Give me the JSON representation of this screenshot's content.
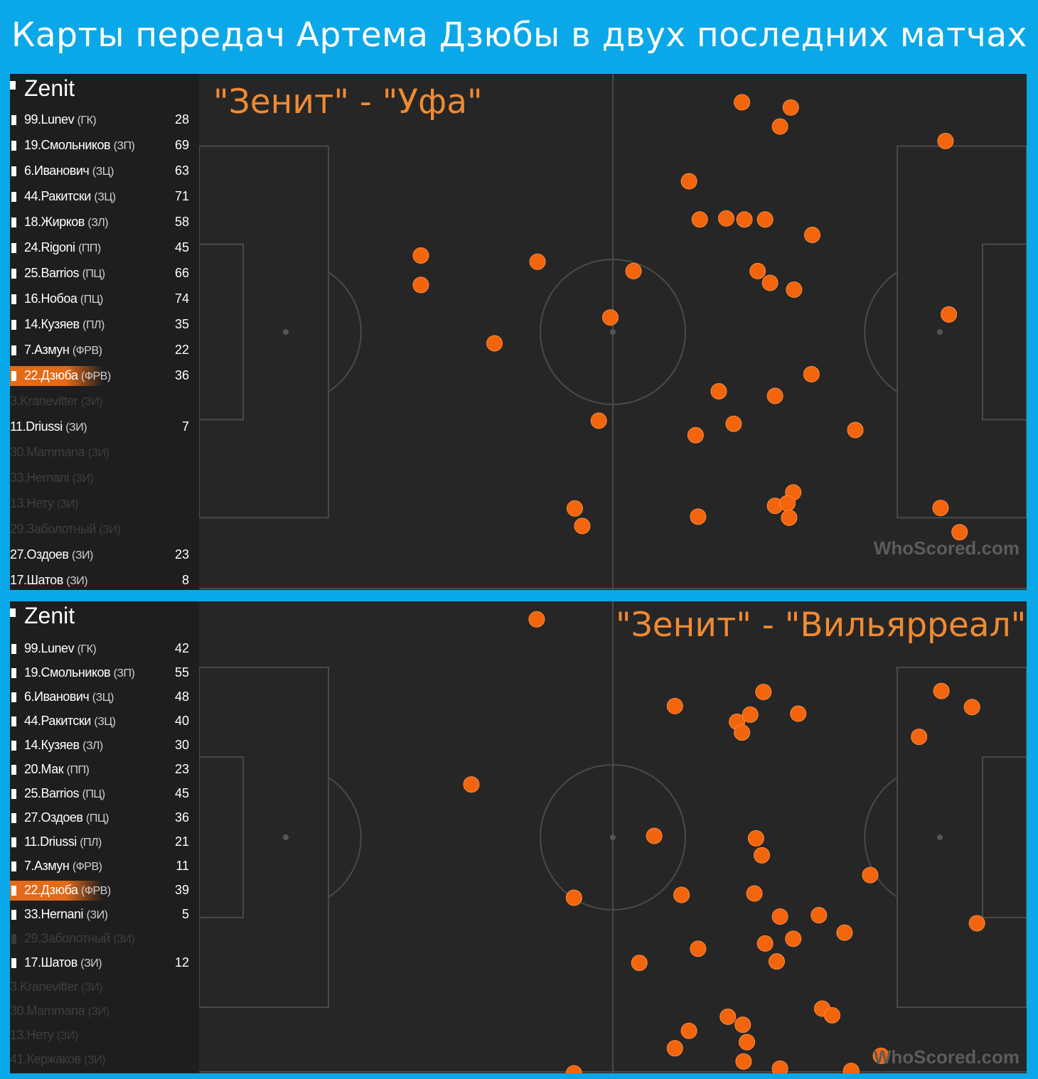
{
  "title": "Карты передач Артема Дзюбы в двух последних матчах",
  "watermark": "WhoScored.com",
  "colors": {
    "background": "#0aa8e8",
    "pitch": "#262626",
    "dot": "#f2650c",
    "highlight": "#e36a18",
    "label": "#f08a33"
  },
  "matches": [
    {
      "label": "\"Зенит\" - \"Уфа\"",
      "team": "Zenit",
      "players": [
        {
          "num_name": "99.Lunev",
          "pos": "(ГК)",
          "count": "28"
        },
        {
          "num_name": "19.Смольников",
          "pos": "(ЗП)",
          "count": "69"
        },
        {
          "num_name": "6.Иванович",
          "pos": "(ЗЦ)",
          "count": "63"
        },
        {
          "num_name": "44.Ракитски",
          "pos": "(ЗЦ)",
          "count": "71"
        },
        {
          "num_name": "18.Жирков",
          "pos": "(ЗЛ)",
          "count": "58"
        },
        {
          "num_name": "24.Rigoni",
          "pos": "(ПП)",
          "count": "45"
        },
        {
          "num_name": "25.Barrios",
          "pos": "(ПЦ)",
          "count": "66"
        },
        {
          "num_name": "16.Нобоа",
          "pos": "(ПЦ)",
          "count": "74"
        },
        {
          "num_name": "14.Кузяев",
          "pos": "(ПЛ)",
          "count": "35"
        },
        {
          "num_name": "7.Азмун",
          "pos": "(ФРВ)",
          "count": "22"
        },
        {
          "num_name": "22.Дзюба",
          "pos": "(ФРВ)",
          "count": "36",
          "selected": true
        }
      ],
      "subs": [
        {
          "num_name": "3.Kranevitter",
          "pos": "(ЗИ)",
          "count": "",
          "played": false
        },
        {
          "num_name": "11.Driussi",
          "pos": "(ЗИ)",
          "count": "7",
          "played": true
        },
        {
          "num_name": "30.Mammana",
          "pos": "(ЗИ)",
          "count": "",
          "played": false
        },
        {
          "num_name": "33.Hernani",
          "pos": "(ЗИ)",
          "count": "",
          "played": false
        },
        {
          "num_name": "13.Нету",
          "pos": "(ЗИ)",
          "count": "",
          "played": false
        },
        {
          "num_name": "29.Заболотный",
          "pos": "(ЗИ)",
          "count": "",
          "played": false
        },
        {
          "num_name": "27.Оздоев",
          "pos": "(ЗИ)",
          "count": "23",
          "played": true
        },
        {
          "num_name": "17.Шатов",
          "pos": "(ЗИ)",
          "count": "8",
          "played": true
        }
      ],
      "passes": [
        [
          0.656,
          0.055
        ],
        [
          0.715,
          0.065
        ],
        [
          0.702,
          0.102
        ],
        [
          0.902,
          0.13
        ],
        [
          0.592,
          0.208
        ],
        [
          0.605,
          0.282
        ],
        [
          0.637,
          0.28
        ],
        [
          0.659,
          0.282
        ],
        [
          0.684,
          0.282
        ],
        [
          0.741,
          0.312
        ],
        [
          0.268,
          0.352
        ],
        [
          0.268,
          0.409
        ],
        [
          0.409,
          0.364
        ],
        [
          0.525,
          0.382
        ],
        [
          0.675,
          0.382
        ],
        [
          0.69,
          0.405
        ],
        [
          0.719,
          0.418
        ],
        [
          0.497,
          0.472
        ],
        [
          0.357,
          0.522
        ],
        [
          0.906,
          0.466
        ],
        [
          0.74,
          0.582
        ],
        [
          0.628,
          0.615
        ],
        [
          0.696,
          0.624
        ],
        [
          0.483,
          0.672
        ],
        [
          0.6,
          0.7
        ],
        [
          0.646,
          0.678
        ],
        [
          0.793,
          0.69
        ],
        [
          0.454,
          0.842
        ],
        [
          0.463,
          0.876
        ],
        [
          0.603,
          0.858
        ],
        [
          0.696,
          0.837
        ],
        [
          0.718,
          0.811
        ],
        [
          0.711,
          0.832
        ],
        [
          0.713,
          0.86
        ],
        [
          0.896,
          0.841
        ],
        [
          0.919,
          0.888
        ]
      ]
    },
    {
      "label": "\"Зенит\" - \"Вильярреал\"",
      "team": "Zenit",
      "players": [
        {
          "num_name": "99.Lunev",
          "pos": "(ГК)",
          "count": "42"
        },
        {
          "num_name": "19.Смольников",
          "pos": "(ЗП)",
          "count": "55"
        },
        {
          "num_name": "6.Иванович",
          "pos": "(ЗЦ)",
          "count": "48"
        },
        {
          "num_name": "44.Ракитски",
          "pos": "(ЗЦ)",
          "count": "40"
        },
        {
          "num_name": "14.Кузяев",
          "pos": "(ЗЛ)",
          "count": "30"
        },
        {
          "num_name": "20.Мак",
          "pos": "(ПП)",
          "count": "23"
        },
        {
          "num_name": "25.Barrios",
          "pos": "(ПЦ)",
          "count": "45"
        },
        {
          "num_name": "27.Оздоев",
          "pos": "(ПЦ)",
          "count": "36"
        },
        {
          "num_name": "11.Driussi",
          "pos": "(ПЛ)",
          "count": "21"
        },
        {
          "num_name": "7.Азмун",
          "pos": "(ФРВ)",
          "count": "11"
        },
        {
          "num_name": "22.Дзюба",
          "pos": "(ФРВ)",
          "count": "39",
          "selected": true
        },
        {
          "num_name": "33.Hernani",
          "pos": "(ЗИ)",
          "count": "5"
        },
        {
          "num_name": "29.Заболотный",
          "pos": "(ЗИ)",
          "count": "",
          "dim": true
        },
        {
          "num_name": "17.Шатов",
          "pos": "(ЗИ)",
          "count": "12"
        }
      ],
      "subs": [
        {
          "num_name": "3.Kranevitter",
          "pos": "(ЗИ)",
          "count": "",
          "played": false
        },
        {
          "num_name": "30.Mammana",
          "pos": "(ЗИ)",
          "count": "",
          "played": false
        },
        {
          "num_name": "13.Нету",
          "pos": "(ЗИ)",
          "count": "",
          "played": false
        },
        {
          "num_name": "41.Кержаков",
          "pos": "(ЗИ)",
          "count": "",
          "played": false
        }
      ],
      "passes": [
        [
          0.408,
          0.038
        ],
        [
          0.575,
          0.222
        ],
        [
          0.682,
          0.192
        ],
        [
          0.65,
          0.255
        ],
        [
          0.666,
          0.24
        ],
        [
          0.656,
          0.278
        ],
        [
          0.724,
          0.238
        ],
        [
          0.897,
          0.19
        ],
        [
          0.934,
          0.224
        ],
        [
          0.87,
          0.287
        ],
        [
          0.329,
          0.388
        ],
        [
          0.55,
          0.497
        ],
        [
          0.673,
          0.502
        ],
        [
          0.68,
          0.538
        ],
        [
          0.811,
          0.58
        ],
        [
          0.453,
          0.628
        ],
        [
          0.583,
          0.622
        ],
        [
          0.671,
          0.619
        ],
        [
          0.702,
          0.668
        ],
        [
          0.749,
          0.665
        ],
        [
          0.78,
          0.702
        ],
        [
          0.718,
          0.715
        ],
        [
          0.684,
          0.725
        ],
        [
          0.603,
          0.736
        ],
        [
          0.698,
          0.763
        ],
        [
          0.532,
          0.766
        ],
        [
          0.94,
          0.682
        ],
        [
          0.753,
          0.863
        ],
        [
          0.765,
          0.877
        ],
        [
          0.639,
          0.88
        ],
        [
          0.657,
          0.897
        ],
        [
          0.592,
          0.91
        ],
        [
          0.662,
          0.934
        ],
        [
          0.575,
          0.947
        ],
        [
          0.658,
          0.975
        ],
        [
          0.702,
          0.99
        ],
        [
          0.824,
          0.963
        ],
        [
          0.788,
          0.995
        ],
        [
          0.453,
          1.0
        ]
      ]
    }
  ]
}
